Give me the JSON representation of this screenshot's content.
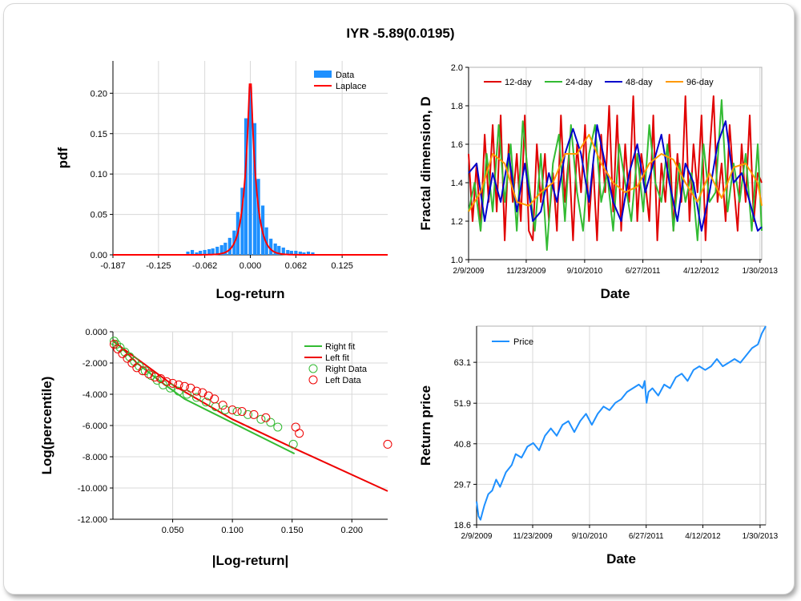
{
  "title": "IYR -5.89(0.0195)",
  "colors": {
    "data": "#1e90ff",
    "laplace": "#ff0000",
    "d12": "#e00000",
    "d24": "#33bb33",
    "d48": "#0000cc",
    "d96": "#ff9900",
    "rightfit": "#33bb33",
    "leftfit": "#ee0000",
    "price": "#1e90ff"
  },
  "chart_data": [
    {
      "type": "bar",
      "title": "",
      "xlabel": "Log-return",
      "ylabel": "pdf",
      "xlim": [
        -0.187,
        0.187
      ],
      "ylim": [
        0,
        0.24
      ],
      "xticks": [
        "-0.187",
        "-0.125",
        "-0.062",
        "0.000",
        "0.062",
        "0.125"
      ],
      "xtick_values": [
        -0.187,
        -0.125,
        -0.062,
        0.0,
        0.062,
        0.125
      ],
      "yticks": [
        "0.00",
        "0.05",
        "0.10",
        "0.15",
        "0.20"
      ],
      "ytick_values": [
        0,
        0.05,
        0.1,
        0.15,
        0.2
      ],
      "legend": [
        "Data",
        "Laplace"
      ],
      "bin_width": 0.00567,
      "bins_x": [
        -0.085,
        -0.079,
        -0.073,
        -0.068,
        -0.062,
        -0.056,
        -0.051,
        -0.045,
        -0.039,
        -0.034,
        -0.028,
        -0.022,
        -0.017,
        -0.011,
        -0.006,
        0.0,
        0.006,
        0.011,
        0.017,
        0.022,
        0.028,
        0.034,
        0.039,
        0.045,
        0.051,
        0.056,
        0.062,
        0.068,
        0.073,
        0.079,
        0.085
      ],
      "bins_y": [
        0.004,
        0.006,
        0.003,
        0.005,
        0.006,
        0.007,
        0.008,
        0.01,
        0.012,
        0.015,
        0.021,
        0.03,
        0.053,
        0.083,
        0.169,
        0.208,
        0.163,
        0.094,
        0.061,
        0.034,
        0.02,
        0.014,
        0.011,
        0.009,
        0.006,
        0.005,
        0.005,
        0.004,
        0.003,
        0.004,
        0.003
      ],
      "laplace": {
        "mu": 0.0,
        "b": 0.0078,
        "peak": 0.24
      }
    },
    {
      "type": "line",
      "title": "",
      "xlabel": "Date",
      "ylabel": "Fractal dimension, D",
      "ylim": [
        1.0,
        2.0
      ],
      "yticks": [
        "1.0",
        "1.2",
        "1.4",
        "1.6",
        "1.8",
        "2.0"
      ],
      "ytick_values": [
        1.0,
        1.2,
        1.4,
        1.6,
        1.8,
        2.0
      ],
      "xticks": [
        "2/9/2009",
        "11/23/2009",
        "9/10/2010",
        "6/27/2011",
        "4/12/2012",
        "1/30/2013"
      ],
      "xtick_days": [
        0,
        287,
        578,
        868,
        1158,
        1451
      ],
      "xlim": [
        0,
        1460
      ],
      "legend": [
        "12-day",
        "24-day",
        "48-day",
        "96-day"
      ],
      "series": [
        {
          "name": "12-day",
          "x": [
            0,
            20,
            40,
            60,
            80,
            100,
            120,
            140,
            160,
            180,
            200,
            220,
            240,
            260,
            280,
            300,
            320,
            340,
            360,
            380,
            400,
            420,
            440,
            460,
            480,
            500,
            520,
            540,
            560,
            580,
            600,
            620,
            640,
            660,
            680,
            700,
            720,
            740,
            760,
            780,
            800,
            820,
            840,
            860,
            880,
            900,
            920,
            940,
            960,
            980,
            1000,
            1020,
            1040,
            1060,
            1080,
            1100,
            1120,
            1140,
            1160,
            1180,
            1200,
            1220,
            1240,
            1260,
            1280,
            1300,
            1320,
            1340,
            1360,
            1380,
            1400,
            1420,
            1440,
            1460
          ],
          "y": [
            1.55,
            1.2,
            1.5,
            1.15,
            1.65,
            1.3,
            1.7,
            1.25,
            1.75,
            1.1,
            1.6,
            1.3,
            1.55,
            1.2,
            1.75,
            1.15,
            1.1,
            1.6,
            1.3,
            1.55,
            1.2,
            1.45,
            1.15,
            1.75,
            1.3,
            1.55,
            1.1,
            1.6,
            1.35,
            1.7,
            1.2,
            1.5,
            1.1,
            1.65,
            1.35,
            1.8,
            1.25,
            1.75,
            1.15,
            1.6,
            1.3,
            1.85,
            1.2,
            1.55,
            1.4,
            1.2,
            1.75,
            1.1,
            1.5,
            1.3,
            1.65,
            1.15,
            1.55,
            1.3,
            1.85,
            1.2,
            1.6,
            1.35,
            1.75,
            1.1,
            1.55,
            1.85,
            1.3,
            1.5,
            1.2,
            1.7,
            1.4,
            1.15,
            1.6,
            1.3,
            1.75,
            1.2,
            1.45,
            1.4
          ]
        },
        {
          "name": "24-day",
          "x": [
            0,
            30,
            60,
            90,
            120,
            150,
            180,
            210,
            240,
            270,
            300,
            330,
            360,
            390,
            420,
            450,
            480,
            510,
            540,
            570,
            600,
            630,
            660,
            690,
            720,
            750,
            780,
            810,
            840,
            870,
            900,
            930,
            960,
            990,
            1020,
            1050,
            1080,
            1110,
            1140,
            1170,
            1200,
            1230,
            1260,
            1290,
            1320,
            1350,
            1380,
            1410,
            1440,
            1460
          ],
          "y": [
            1.25,
            1.4,
            1.15,
            1.55,
            1.25,
            1.7,
            1.3,
            1.6,
            1.15,
            1.72,
            1.4,
            1.15,
            1.55,
            1.05,
            1.5,
            1.65,
            1.2,
            1.7,
            1.35,
            1.15,
            1.55,
            1.7,
            1.3,
            1.45,
            1.15,
            1.6,
            1.4,
            1.2,
            1.55,
            1.25,
            1.7,
            1.4,
            1.3,
            1.6,
            1.15,
            1.5,
            1.3,
            1.45,
            1.1,
            1.6,
            1.3,
            1.35,
            1.83,
            1.25,
            1.5,
            1.3,
            1.55,
            1.15,
            1.6,
            1.15
          ]
        },
        {
          "name": "48-day",
          "x": [
            0,
            40,
            80,
            120,
            160,
            200,
            240,
            280,
            320,
            360,
            400,
            440,
            480,
            520,
            560,
            600,
            640,
            680,
            720,
            760,
            800,
            840,
            880,
            920,
            960,
            1000,
            1040,
            1080,
            1120,
            1160,
            1200,
            1240,
            1280,
            1320,
            1360,
            1400,
            1440,
            1460
          ],
          "y": [
            1.45,
            1.5,
            1.2,
            1.45,
            1.3,
            1.55,
            1.25,
            1.5,
            1.2,
            1.25,
            1.45,
            1.3,
            1.55,
            1.68,
            1.55,
            1.3,
            1.7,
            1.5,
            1.3,
            1.2,
            1.45,
            1.6,
            1.35,
            1.5,
            1.65,
            1.4,
            1.2,
            1.5,
            1.4,
            1.15,
            1.35,
            1.6,
            1.72,
            1.4,
            1.45,
            1.3,
            1.15,
            1.17
          ]
        },
        {
          "name": "96-day",
          "x": [
            0,
            60,
            120,
            180,
            240,
            300,
            360,
            420,
            480,
            540,
            600,
            660,
            720,
            780,
            840,
            900,
            960,
            1020,
            1080,
            1140,
            1200,
            1260,
            1320,
            1380,
            1440,
            1460
          ],
          "y": [
            1.25,
            1.35,
            1.55,
            1.5,
            1.3,
            1.28,
            1.35,
            1.4,
            1.55,
            1.55,
            1.65,
            1.5,
            1.4,
            1.35,
            1.38,
            1.5,
            1.55,
            1.52,
            1.4,
            1.3,
            1.45,
            1.32,
            1.48,
            1.5,
            1.4,
            1.28
          ]
        }
      ]
    },
    {
      "type": "scatter",
      "title": "",
      "xlabel": "|Log-return|",
      "ylabel": "Log(percentile)",
      "xlim": [
        0,
        0.23
      ],
      "ylim": [
        -12,
        0
      ],
      "xticks": [
        "0.050",
        "0.100",
        "0.150",
        "0.200"
      ],
      "xtick_values": [
        0.05,
        0.1,
        0.15,
        0.2
      ],
      "yticks": [
        "0.000",
        "-2.000",
        "-4.000",
        "-6.000",
        "-8.000",
        "-10.000",
        "-12.000"
      ],
      "ytick_values": [
        0,
        -2,
        -4,
        -6,
        -8,
        -10,
        -12
      ],
      "legend": [
        "Right fit",
        "Left fit",
        "Right Data",
        "Left Data"
      ],
      "right_fit": {
        "x": [
          0.0,
          0.02,
          0.04,
          0.06,
          0.152
        ],
        "y": [
          -0.5,
          -2.0,
          -3.2,
          -4.3,
          -7.8
        ]
      },
      "left_fit": {
        "x": [
          0.0,
          0.05,
          0.1,
          0.15,
          0.23
        ],
        "y": [
          -0.6,
          -3.4,
          -5.6,
          -7.4,
          -10.2
        ]
      },
      "right_data": {
        "x": [
          0.001,
          0.003,
          0.006,
          0.01,
          0.014,
          0.018,
          0.022,
          0.027,
          0.032,
          0.037,
          0.042,
          0.048,
          0.055,
          0.062,
          0.07,
          0.078,
          0.086,
          0.094,
          0.104,
          0.113,
          0.124,
          0.132,
          0.138,
          0.151
        ],
        "y": [
          -0.6,
          -0.8,
          -1.0,
          -1.3,
          -1.6,
          -1.9,
          -2.2,
          -2.5,
          -2.8,
          -3.1,
          -3.4,
          -3.6,
          -3.8,
          -4.0,
          -4.2,
          -4.5,
          -4.8,
          -5.0,
          -5.1,
          -5.3,
          -5.6,
          -5.8,
          -6.1,
          -7.2
        ]
      },
      "left_data": {
        "x": [
          0.001,
          0.004,
          0.008,
          0.012,
          0.016,
          0.02,
          0.025,
          0.03,
          0.035,
          0.04,
          0.045,
          0.05,
          0.055,
          0.06,
          0.065,
          0.07,
          0.075,
          0.08,
          0.085,
          0.092,
          0.1,
          0.108,
          0.118,
          0.128,
          0.153,
          0.156,
          0.23
        ],
        "y": [
          -0.8,
          -1.1,
          -1.4,
          -1.7,
          -2.0,
          -2.3,
          -2.5,
          -2.7,
          -2.9,
          -3.0,
          -3.2,
          -3.3,
          -3.4,
          -3.5,
          -3.6,
          -3.8,
          -3.9,
          -4.1,
          -4.3,
          -4.7,
          -5.0,
          -5.1,
          -5.3,
          -5.5,
          -6.1,
          -6.5,
          -7.2
        ]
      }
    },
    {
      "type": "line",
      "title": "",
      "xlabel": "Date",
      "ylabel": "Return price",
      "ylim": [
        18.6,
        73.0
      ],
      "yticks": [
        "18.6",
        "29.7",
        "40.8",
        "51.9",
        "63.1"
      ],
      "ytick_values": [
        18.6,
        29.7,
        40.8,
        51.9,
        63.1
      ],
      "xticks": [
        "2/9/2009",
        "11/23/2009",
        "9/10/2010",
        "6/27/2011",
        "4/12/2012",
        "1/30/2013"
      ],
      "xtick_days": [
        0,
        287,
        578,
        868,
        1158,
        1451
      ],
      "xlim": [
        0,
        1480
      ],
      "legend": [
        "Price"
      ],
      "series": [
        {
          "name": "Price",
          "x": [
            0,
            10,
            20,
            30,
            40,
            60,
            80,
            100,
            120,
            150,
            180,
            200,
            230,
            260,
            290,
            320,
            350,
            380,
            410,
            440,
            470,
            500,
            530,
            560,
            590,
            620,
            650,
            680,
            710,
            740,
            770,
            800,
            830,
            850,
            860,
            870,
            880,
            900,
            930,
            960,
            990,
            1020,
            1050,
            1080,
            1110,
            1140,
            1170,
            1200,
            1230,
            1260,
            1290,
            1320,
            1350,
            1380,
            1410,
            1440,
            1460,
            1480
          ],
          "y": [
            25,
            21,
            20,
            22,
            24,
            27,
            28,
            31,
            29,
            33,
            35,
            38,
            37,
            40,
            41,
            39,
            43,
            45,
            43,
            46,
            47,
            44,
            47,
            49,
            46,
            49,
            51,
            50,
            52,
            53,
            55,
            56,
            57,
            56,
            58,
            52,
            55,
            56,
            54,
            57,
            56,
            59,
            60,
            58,
            61,
            62,
            61,
            62,
            64,
            62,
            63,
            64,
            63,
            65,
            67,
            68,
            71,
            73
          ]
        }
      ]
    }
  ]
}
